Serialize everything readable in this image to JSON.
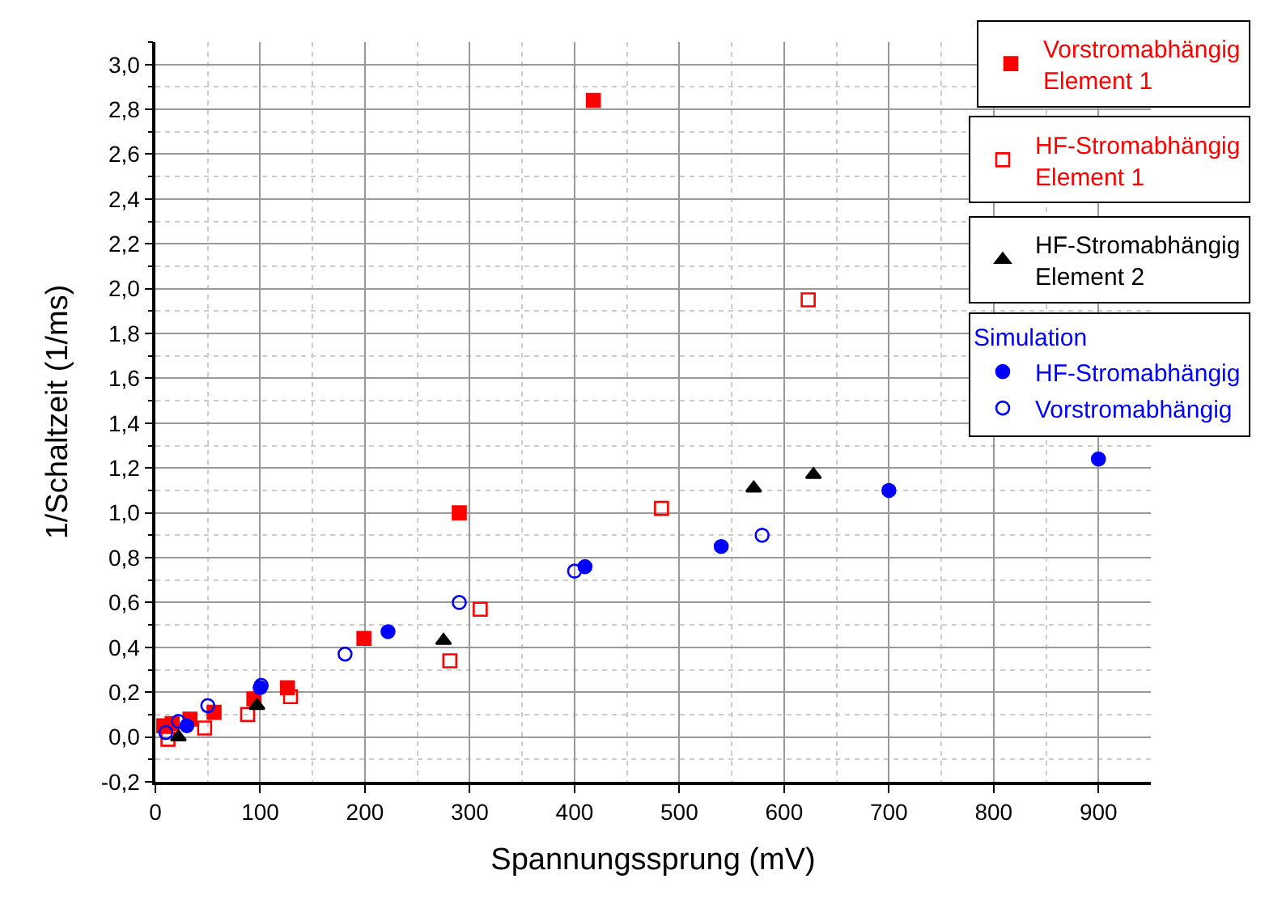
{
  "chart_data": {
    "type": "scatter",
    "xlabel": "Spannungssprung (mV)",
    "ylabel": "1/Schaltzeit (1/ms)",
    "legend_title": "Simulation",
    "xlim": [
      0,
      950
    ],
    "ylim": [
      -0.2,
      3.1
    ],
    "xticks": [
      0,
      100,
      200,
      300,
      400,
      500,
      600,
      700,
      800,
      900
    ],
    "yticks": [
      {
        "value": -0.2,
        "label": "-0,2"
      },
      {
        "value": 0,
        "label": "0,0"
      },
      {
        "value": 0.2,
        "label": "0,2"
      },
      {
        "value": 0.4,
        "label": "0,4"
      },
      {
        "value": 0.6,
        "label": "0,6"
      },
      {
        "value": 0.8,
        "label": "0,8"
      },
      {
        "value": 1.0,
        "label": "1,0"
      },
      {
        "value": 1.2,
        "label": "1,2"
      },
      {
        "value": 1.4,
        "label": "1,4"
      },
      {
        "value": 1.6,
        "label": "1,6"
      },
      {
        "value": 1.8,
        "label": "1,8"
      },
      {
        "value": 2.0,
        "label": "2,0"
      },
      {
        "value": 2.2,
        "label": "2,2"
      },
      {
        "value": 2.4,
        "label": "2,4"
      },
      {
        "value": 2.6,
        "label": "2,6"
      },
      {
        "value": 2.8,
        "label": "2,8"
      },
      {
        "value": 3.0,
        "label": "3,0"
      }
    ],
    "grid": true,
    "legend": "top right",
    "series": [
      {
        "name": "Vorstromabhängig\nElement 1",
        "color": "#ff0000",
        "marker": "square",
        "x": [
          8,
          16,
          33,
          56,
          94,
          126,
          199,
          290,
          418
        ],
        "values": [
          0.05,
          0.06,
          0.08,
          0.11,
          0.17,
          0.22,
          0.44,
          1.0,
          2.84
        ]
      },
      {
        "name": "HF-Stromabhängig\nElement 1",
        "color": "#ff0000",
        "marker": "square-open",
        "x": [
          12,
          47,
          88,
          129,
          281,
          310,
          483,
          623
        ],
        "values": [
          -0.01,
          0.04,
          0.1,
          0.18,
          0.34,
          0.57,
          1.02,
          1.95
        ]
      },
      {
        "name": "HF-Stromabhängig\nElement 2",
        "color": "#000000",
        "marker": "triangle",
        "x": [
          22,
          97,
          275,
          571,
          628
        ],
        "values": [
          0.0,
          0.14,
          0.43,
          1.11,
          1.17
        ]
      },
      {
        "name": "HF-Stromabhängig",
        "color": "#0000ff",
        "marker": "circle",
        "x": [
          30,
          100,
          222,
          410,
          540,
          700,
          900
        ],
        "values": [
          0.05,
          0.22,
          0.47,
          0.76,
          0.85,
          1.1,
          1.24
        ]
      },
      {
        "name": "Vorstromabhängig",
        "color": "#0000ff",
        "marker": "circle-open",
        "x": [
          10,
          22,
          50,
          101,
          181,
          290,
          400,
          579
        ],
        "values": [
          0.02,
          0.07,
          0.14,
          0.23,
          0.37,
          0.6,
          0.74,
          0.9
        ]
      }
    ]
  }
}
